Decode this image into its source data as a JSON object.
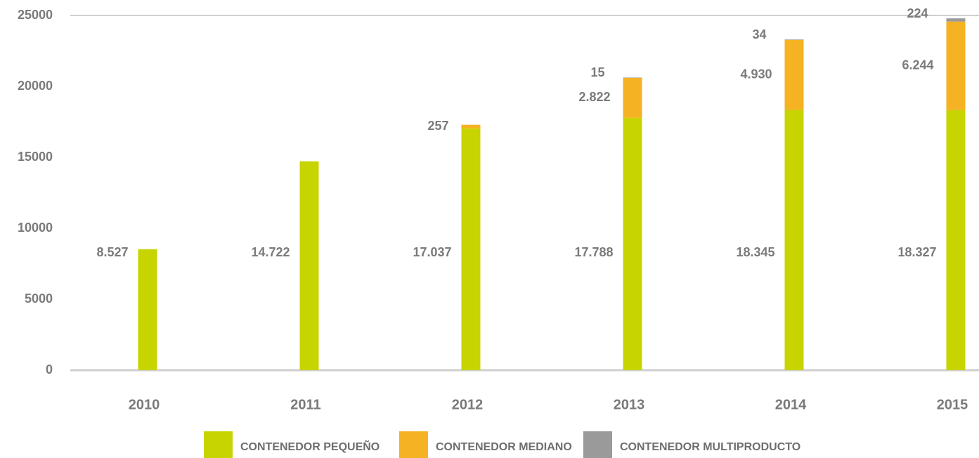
{
  "chart_data": {
    "type": "bar",
    "stacked": true,
    "categories": [
      "2010",
      "2011",
      "2012",
      "2013",
      "2014",
      "2015"
    ],
    "series": [
      {
        "name": "CONTENEDOR PEQUEÑO",
        "color": "#c8d400",
        "values": [
          8527,
          14722,
          17037,
          17788,
          18345,
          18327
        ],
        "value_labels": [
          "8.527",
          "14.722",
          "17.037",
          "17.788",
          "18.345",
          "18.327"
        ]
      },
      {
        "name": "CONTENEDOR MEDIANO",
        "color": "#f5b223",
        "values": [
          null,
          null,
          257,
          2822,
          4930,
          6244
        ],
        "value_labels": [
          null,
          null,
          "257",
          "2.822",
          "4.930",
          "6.244"
        ]
      },
      {
        "name": "CONTENEDOR MULTIPRODUCTO",
        "color": "#9a9a9a",
        "values": [
          null,
          null,
          null,
          15,
          34,
          224
        ]
      }
    ],
    "ylim": [
      0,
      25000
    ],
    "yticks": [
      0,
      5000,
      10000,
      15000,
      20000,
      25000
    ],
    "grid": false
  }
}
